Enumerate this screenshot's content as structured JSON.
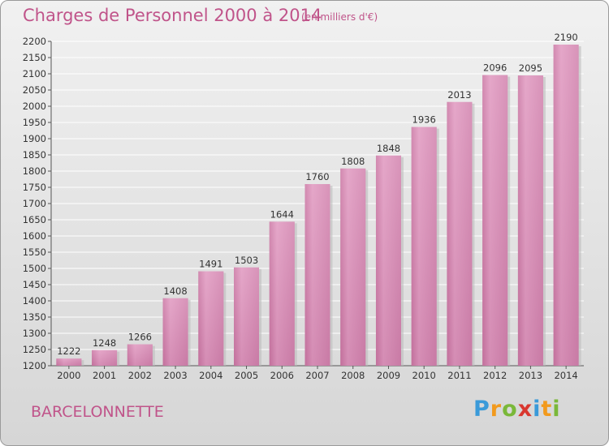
{
  "chart_data": {
    "type": "bar",
    "title": "Charges de Personnel 2000 à 2014",
    "subtitle": "(en milliers d'€)",
    "categories": [
      "2000",
      "2001",
      "2002",
      "2003",
      "2004",
      "2005",
      "2006",
      "2007",
      "2008",
      "2009",
      "2010",
      "2011",
      "2012",
      "2013",
      "2014"
    ],
    "values": [
      1222,
      1248,
      1266,
      1408,
      1491,
      1503,
      1644,
      1760,
      1808,
      1848,
      1936,
      2013,
      2096,
      2095,
      2190
    ],
    "ylim": [
      1200,
      2200
    ],
    "ytick_step": 50,
    "grid": true,
    "bar_color": "#d98bb5",
    "legend": "none"
  },
  "footer": {
    "town": "BARCELONNETTE",
    "logo": {
      "letters": [
        "P",
        "r",
        "o",
        "x",
        "i",
        "t",
        "i"
      ],
      "colors": [
        "#3a9ad9",
        "#f29a1d",
        "#7ab839",
        "#d9372f",
        "#3a9ad9",
        "#f29a1d",
        "#7ab839"
      ]
    }
  }
}
